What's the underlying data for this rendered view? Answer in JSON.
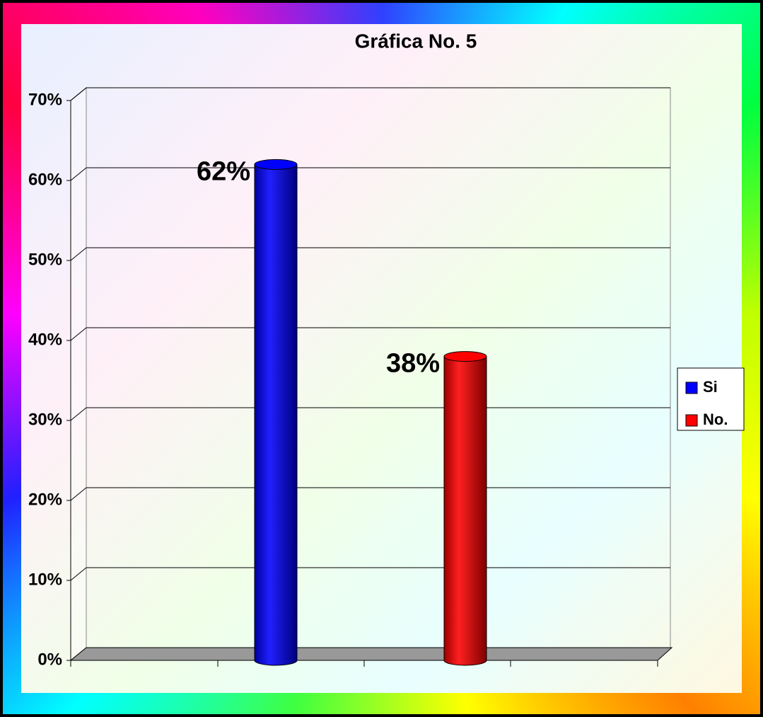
{
  "chart_data": {
    "type": "bar3d",
    "title": "Gráfica  No.  5",
    "categories": [
      null
    ],
    "series": [
      {
        "name": "Si",
        "color": "#0000ff",
        "values": [
          62
        ],
        "value_labels": [
          "62%"
        ]
      },
      {
        "name": "No.",
        "color": "#ff0000",
        "values": [
          38
        ],
        "value_labels": [
          "38%"
        ]
      }
    ],
    "ylim": [
      0,
      70
    ],
    "yticks": [
      {
        "value": 0,
        "label": "0%"
      },
      {
        "value": 10,
        "label": "10%"
      },
      {
        "value": 20,
        "label": "20%"
      },
      {
        "value": 30,
        "label": "30%"
      },
      {
        "value": 40,
        "label": "40%"
      },
      {
        "value": 50,
        "label": "50%"
      },
      {
        "value": 60,
        "label": "60%"
      },
      {
        "value": 70,
        "label": "70%"
      }
    ],
    "grid": true,
    "legend": "right"
  }
}
